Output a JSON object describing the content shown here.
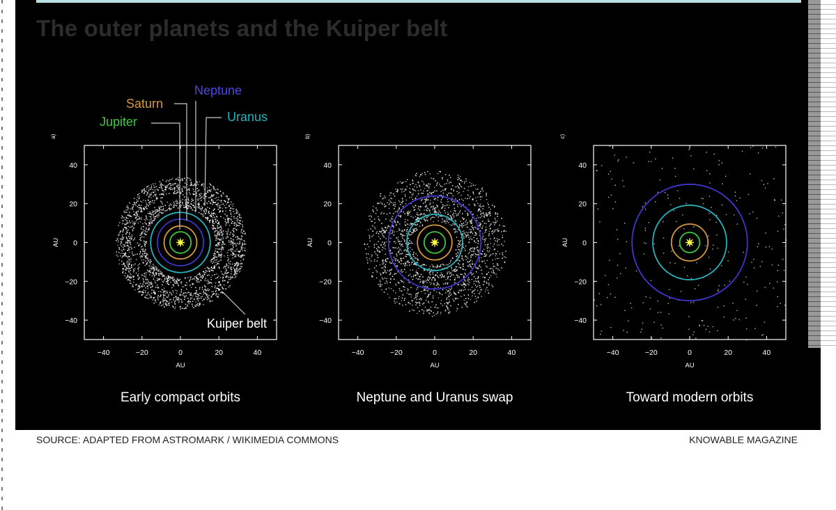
{
  "title": "The outer planets and the Kuiper belt",
  "planet_labels": {
    "saturn": "Saturn",
    "neptune": "Neptune",
    "jupiter": "Jupiter",
    "uranus": "Uranus",
    "kuiper_belt": "Kuiper belt"
  },
  "colors": {
    "jupiter": "#3ec93e",
    "saturn": "#d59a3c",
    "uranus": "#26b3bd",
    "neptune": "#3d36c9",
    "sun": "#ffff3a",
    "axes": "#ffffff"
  },
  "panels": [
    {
      "letter": "a)",
      "caption": "Early compact orbits",
      "orbits_au": {
        "jupiter": 5.5,
        "saturn": 8.5,
        "neptune": 12,
        "uranus": 15.5
      },
      "belt": {
        "inner_au": 18,
        "outer_au": 34,
        "gap_au": 24,
        "density": "dense"
      }
    },
    {
      "letter": "b)",
      "caption": "Neptune and Uranus swap",
      "orbits_au": {
        "jupiter": 5.5,
        "saturn": 9,
        "uranus": 14.5,
        "neptune": 24
      },
      "belt": {
        "inner_au": 12,
        "outer_au": 37,
        "density": "medium"
      }
    },
    {
      "letter": "c)",
      "caption": "Toward modern orbits",
      "orbits_au": {
        "jupiter": 5.2,
        "saturn": 9.5,
        "uranus": 19.2,
        "neptune": 30
      },
      "belt": {
        "inner_au": 0,
        "outer_au": 50,
        "density": "sparse"
      }
    }
  ],
  "axes": {
    "x_label": "AU",
    "y_label": "AU",
    "range_au": [
      -50,
      50
    ],
    "ticks": [
      -40,
      -20,
      0,
      20,
      40
    ],
    "tick_labels": [
      "−40",
      "−20",
      "0",
      "20",
      "40"
    ]
  },
  "footer": {
    "source": "SOURCE: ADAPTED FROM ASTROMARK / WIKIMEDIA COMMONS",
    "credit": "KNOWABLE MAGAZINE"
  }
}
